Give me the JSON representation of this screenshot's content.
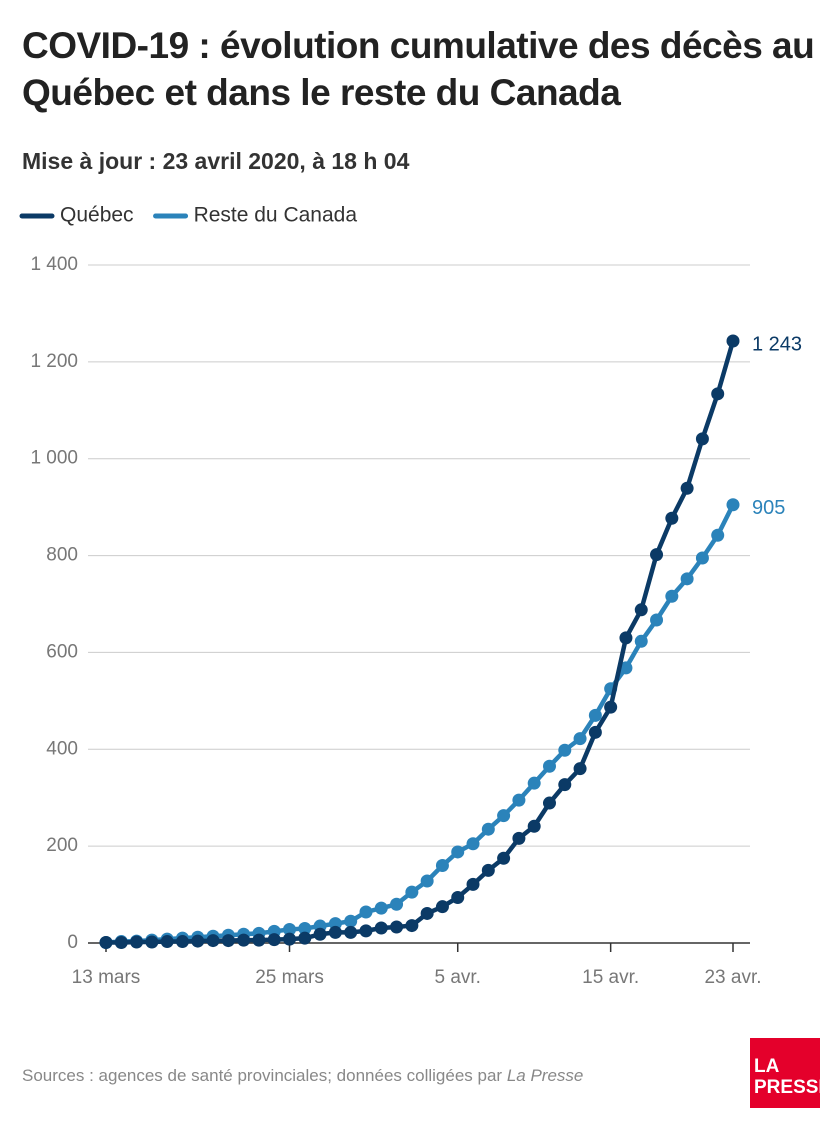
{
  "chart_data": {
    "type": "line",
    "title": "COVID-19 : évolution cumulative des décès au Québec et dans le reste du Canada",
    "subtitle": "Mise à jour : 23 avril 2020, à 18 h 04",
    "categories": [
      "13 mars",
      null,
      null,
      null,
      null,
      null,
      null,
      null,
      null,
      null,
      null,
      null,
      "25 mars",
      null,
      null,
      null,
      null,
      null,
      null,
      null,
      null,
      null,
      null,
      "5 avr.",
      null,
      null,
      null,
      null,
      null,
      null,
      null,
      null,
      null,
      "15 avr.",
      null,
      null,
      null,
      null,
      null,
      null,
      null,
      "23 avr."
    ],
    "series": [
      {
        "name": "Québec",
        "color": "#0b3a66",
        "values": [
          1,
          1,
          2,
          2,
          3,
          3,
          4,
          5,
          5,
          6,
          6,
          7,
          8,
          10,
          18,
          22,
          22,
          25,
          31,
          33,
          36,
          61,
          75,
          94,
          121,
          150,
          175,
          216,
          241,
          289,
          327,
          360,
          435,
          487,
          630,
          688,
          802,
          877,
          939,
          1041,
          1134,
          1243
        ],
        "value_labels": [
          null,
          null,
          null,
          null,
          null,
          null,
          null,
          null,
          null,
          null,
          null,
          null,
          null,
          null,
          null,
          null,
          null,
          null,
          null,
          null,
          null,
          null,
          null,
          null,
          null,
          null,
          null,
          null,
          null,
          null,
          null,
          null,
          null,
          null,
          null,
          null,
          null,
          null,
          null,
          null,
          null,
          "1 243"
        ]
      },
      {
        "name": "Reste du Canada",
        "color": "#2b83ba",
        "values": [
          1,
          3,
          4,
          6,
          8,
          10,
          12,
          14,
          16,
          18,
          20,
          24,
          28,
          30,
          35,
          40,
          45,
          64,
          72,
          80,
          105,
          128,
          160,
          188,
          205,
          235,
          263,
          295,
          330,
          365,
          398,
          422,
          470,
          525,
          568,
          623,
          667,
          716,
          752,
          795,
          842,
          905
        ],
        "value_labels": [
          null,
          null,
          null,
          null,
          null,
          null,
          null,
          null,
          null,
          null,
          null,
          null,
          null,
          null,
          null,
          null,
          null,
          null,
          null,
          null,
          null,
          null,
          null,
          null,
          null,
          null,
          null,
          null,
          null,
          null,
          null,
          null,
          null,
          null,
          null,
          null,
          null,
          null,
          null,
          null,
          null,
          "905"
        ]
      }
    ],
    "ylim": [
      0,
      1400
    ],
    "yticks": [
      0,
      200,
      400,
      600,
      800,
      {
        "value": 1000,
        "label": "1 000"
      },
      {
        "value": 1200,
        "label": "1 200"
      },
      {
        "value": 1400,
        "label": "1 400"
      }
    ],
    "grid": true,
    "source": "Sources : agences de santé provinciales; données colligées par ",
    "source_italic": "La Presse",
    "logo": [
      "LA",
      "PRESSE"
    ]
  }
}
